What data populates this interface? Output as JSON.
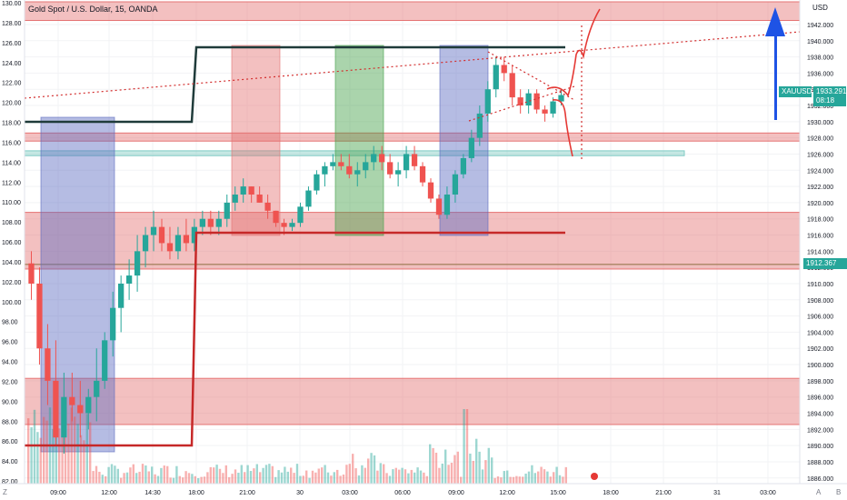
{
  "header": {
    "title": "Gold Spot / U.S. Dollar, 15, OANDA",
    "currency": "USD"
  },
  "price_tag": {
    "symbol": "XAUUSD",
    "price": "1933.291",
    "timer": "08:18",
    "color": "#26a69a"
  },
  "level_tag": {
    "price": "1912.367",
    "color": "#26a69a"
  },
  "bottom_bar": {
    "left_label": "Z",
    "right_label_a": "A",
    "right_label_b": "B"
  },
  "colors": {
    "up": "#26a69a",
    "down": "#ef5350",
    "zone": "#e57373",
    "blue_arrow": "#1e53e5"
  },
  "chart_data": {
    "type": "candlestick",
    "title": "Gold Spot / U.S. Dollar, 15, OANDA",
    "left_axis": {
      "ticks": [
        "130.00",
        "128.00",
        "126.00",
        "124.00",
        "122.00",
        "120.00",
        "118.00",
        "116.00",
        "114.00",
        "112.00",
        "110.00",
        "108.00",
        "106.00",
        "104.00",
        "102.00",
        "100.00",
        "98.00",
        "96.00",
        "94.00",
        "92.00",
        "90.00",
        "88.00",
        "86.00",
        "84.00",
        "82.00"
      ],
      "range": [
        82,
        130
      ]
    },
    "right_axis": {
      "ticks": [
        "1942.000",
        "1940.000",
        "1938.000",
        "1936.000",
        "1934.000",
        "1932.000",
        "1930.000",
        "1928.000",
        "1926.000",
        "1924.000",
        "1922.000",
        "1920.000",
        "1918.000",
        "1916.000",
        "1914.000",
        "1912.000",
        "1910.000",
        "1908.000",
        "1906.000",
        "1904.000",
        "1902.000",
        "1900.000",
        "1898.000",
        "1896.000",
        "1894.000",
        "1892.000",
        "1890.000",
        "1888.000",
        "1886.000"
      ],
      "range": [
        1885.3,
        1944.8
      ]
    },
    "x_axis": {
      "labels": [
        "09:00",
        "12:00",
        "14:30",
        "18:00",
        "21:00",
        "30",
        "03:00",
        "06:00",
        "09:00",
        "12:00",
        "15:00",
        "18:00",
        "21:00",
        "31",
        "03:00"
      ]
    },
    "candles": [
      [
        1912.5,
        1914,
        1908,
        1910
      ],
      [
        1910,
        1912,
        1900,
        1902
      ],
      [
        1902,
        1905,
        1895,
        1898
      ],
      [
        1898,
        1903,
        1890,
        1891
      ],
      [
        1891,
        1899,
        1889,
        1896
      ],
      [
        1896,
        1899,
        1893,
        1895
      ],
      [
        1895,
        1898,
        1891,
        1894
      ],
      [
        1894,
        1897,
        1892,
        1896
      ],
      [
        1896,
        1902,
        1893,
        1898
      ],
      [
        1898,
        1904,
        1897,
        1903
      ],
      [
        1903,
        1909,
        1901,
        1907
      ],
      [
        1907,
        1911,
        1904,
        1910
      ],
      [
        1910,
        1913,
        1908,
        1911
      ],
      [
        1911,
        1916,
        1909,
        1914
      ],
      [
        1914,
        1917,
        1912,
        1916
      ],
      [
        1916,
        1919,
        1914,
        1917
      ],
      [
        1917,
        1918,
        1914,
        1915
      ],
      [
        1915,
        1917,
        1913,
        1914
      ],
      [
        1914,
        1917,
        1913,
        1916
      ],
      [
        1916,
        1918,
        1914,
        1915
      ],
      [
        1915,
        1918,
        1914,
        1917
      ],
      [
        1917,
        1919,
        1916,
        1918
      ],
      [
        1918,
        1919,
        1916,
        1917
      ],
      [
        1917,
        1919,
        1916,
        1918
      ],
      [
        1918,
        1921,
        1917,
        1920
      ],
      [
        1920,
        1922,
        1919,
        1921
      ],
      [
        1921,
        1923,
        1920,
        1922
      ],
      [
        1922,
        1922,
        1920,
        1921
      ],
      [
        1921,
        1922,
        1920,
        1920
      ],
      [
        1920,
        1921,
        1918,
        1919
      ],
      [
        1919,
        1919,
        1917,
        1917.5
      ],
      [
        1917.5,
        1918,
        1916,
        1917
      ],
      [
        1917,
        1918,
        1916.5,
        1917.5
      ],
      [
        1917.5,
        1920,
        1917,
        1919.5
      ],
      [
        1919.5,
        1922,
        1919,
        1921.5
      ],
      [
        1921.5,
        1924,
        1921,
        1923.5
      ],
      [
        1923.5,
        1925,
        1922,
        1924.5
      ],
      [
        1924.5,
        1926,
        1924,
        1925
      ],
      [
        1925,
        1926,
        1924,
        1924.5
      ],
      [
        1924.5,
        1926,
        1923,
        1923.5
      ],
      [
        1923.5,
        1925,
        1922,
        1924
      ],
      [
        1924,
        1926,
        1923,
        1925
      ],
      [
        1925,
        1927,
        1924,
        1926
      ],
      [
        1926,
        1927,
        1924,
        1925
      ],
      [
        1925,
        1926,
        1923,
        1923.5
      ],
      [
        1923.5,
        1925,
        1922,
        1924
      ],
      [
        1924,
        1927,
        1923,
        1926
      ],
      [
        1926,
        1927,
        1924,
        1924.5
      ],
      [
        1924.5,
        1925,
        1922,
        1922.5
      ],
      [
        1922.5,
        1923,
        1920,
        1920.5
      ],
      [
        1920.5,
        1921,
        1918,
        1918.5
      ],
      [
        1918.5,
        1922,
        1918,
        1921
      ],
      [
        1921,
        1924,
        1920,
        1923.5
      ],
      [
        1923.5,
        1926,
        1923,
        1925.5
      ],
      [
        1925.5,
        1929,
        1925,
        1928
      ],
      [
        1928,
        1932,
        1927,
        1931
      ],
      [
        1931,
        1935,
        1930,
        1934
      ],
      [
        1934,
        1938,
        1933,
        1937
      ],
      [
        1937,
        1938,
        1935,
        1936
      ],
      [
        1936,
        1937,
        1932,
        1933
      ],
      [
        1933,
        1934,
        1931,
        1932
      ],
      [
        1932,
        1934,
        1931,
        1933.5
      ],
      [
        1933.5,
        1934,
        1931,
        1931.5
      ],
      [
        1931.5,
        1932,
        1930,
        1931
      ],
      [
        1931,
        1933,
        1930.5,
        1932.5
      ],
      [
        1932.5,
        1934,
        1932,
        1933.29
      ]
    ],
    "zones": [
      {
        "top": 1944.8,
        "bottom": 1942.5,
        "color": "#e57373"
      },
      {
        "top": 1928.6,
        "bottom": 1927.6,
        "color": "#e57373"
      },
      {
        "top": 1926.4,
        "bottom": 1925.8,
        "color": "#80cbc4"
      },
      {
        "top": 1918.8,
        "bottom": 1911.8,
        "color": "#e57373"
      },
      {
        "top": 1898.3,
        "bottom": 1892.6,
        "color": "#e57373"
      }
    ],
    "level_line": 1912.367
  }
}
